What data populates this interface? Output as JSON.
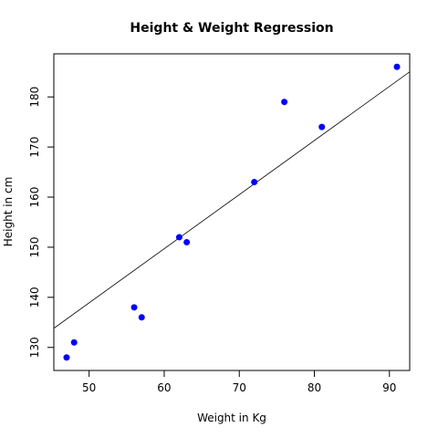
{
  "chart_data": {
    "type": "scatter",
    "title": "Height & Weight Regression",
    "xlabel": "Weight in Kg",
    "ylabel": "Height in cm",
    "xlim": [
      45.3,
      92.7
    ],
    "ylim": [
      125.4,
      188.6
    ],
    "x_ticks": [
      50,
      60,
      70,
      80,
      90
    ],
    "y_ticks": [
      130,
      140,
      150,
      160,
      170,
      180
    ],
    "grid": false,
    "legend": "none",
    "point_color": "#0000ff",
    "line_color": "#000000",
    "points": [
      {
        "x": 47,
        "y": 128
      },
      {
        "x": 48,
        "y": 131
      },
      {
        "x": 56,
        "y": 138
      },
      {
        "x": 57,
        "y": 136
      },
      {
        "x": 62,
        "y": 152
      },
      {
        "x": 63,
        "y": 151
      },
      {
        "x": 72,
        "y": 163
      },
      {
        "x": 76,
        "y": 179
      },
      {
        "x": 81,
        "y": 174
      },
      {
        "x": 91,
        "y": 186
      }
    ],
    "regression": {
      "intercept": 84.9,
      "slope": 1.08
    }
  }
}
